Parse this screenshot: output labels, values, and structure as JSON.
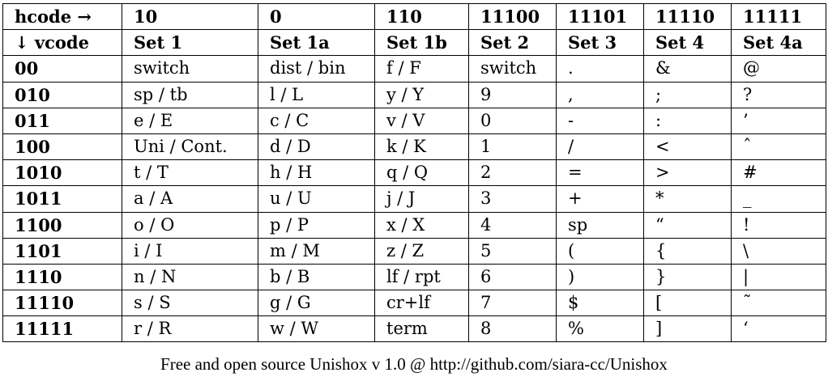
{
  "table": {
    "corner_top": "hcode →",
    "corner_bottom": "↓ vcode",
    "hcodes": [
      "10",
      "0",
      "110",
      "11100",
      "11101",
      "11110",
      "11111"
    ],
    "sets": [
      "Set 1",
      "Set 1a",
      "Set 1b",
      "Set 2",
      "Set 3",
      "Set 4",
      "Set 4a"
    ],
    "rows": [
      {
        "vcode": "00",
        "cells": [
          "switch",
          "dist / bin",
          "f / F",
          "switch",
          ".",
          "&",
          "@"
        ]
      },
      {
        "vcode": "010",
        "cells": [
          "sp / tb",
          "l / L",
          "y / Y",
          "9",
          ",",
          ";",
          "?"
        ]
      },
      {
        "vcode": "011",
        "cells": [
          "e / E",
          "c / C",
          "v / V",
          "0",
          "-",
          ":",
          "’"
        ]
      },
      {
        "vcode": "100",
        "cells": [
          "Uni / Cont.",
          "d / D",
          "k / K",
          "1",
          "/",
          "<",
          "ˆ"
        ]
      },
      {
        "vcode": "1010",
        "cells": [
          "t / T",
          "h / H",
          "q / Q",
          "2",
          "=",
          ">",
          "#"
        ]
      },
      {
        "vcode": "1011",
        "cells": [
          "a / A",
          "u / U",
          "j / J",
          "3",
          "+",
          "*",
          "_"
        ]
      },
      {
        "vcode": "1100",
        "cells": [
          "o / O",
          "p / P",
          "x / X",
          "4",
          "sp",
          "“",
          "!"
        ]
      },
      {
        "vcode": "1101",
        "cells": [
          "i / I",
          "m / M",
          "z / Z",
          "5",
          "(",
          "{",
          "\\"
        ]
      },
      {
        "vcode": "1110",
        "cells": [
          "n / N",
          "b / B",
          "lf / rpt",
          "6",
          ")",
          "}",
          "|"
        ]
      },
      {
        "vcode": "11110",
        "cells": [
          "s / S",
          "g / G",
          "cr+lf",
          "7",
          "$",
          "[",
          "˜"
        ]
      },
      {
        "vcode": "11111",
        "cells": [
          "r / R",
          "w / W",
          "term",
          "8",
          "%",
          "]",
          "‘"
        ]
      }
    ]
  },
  "caption": "Free and open source Unishox v 1.0 @ http://github.com/siara-cc/Unishox"
}
